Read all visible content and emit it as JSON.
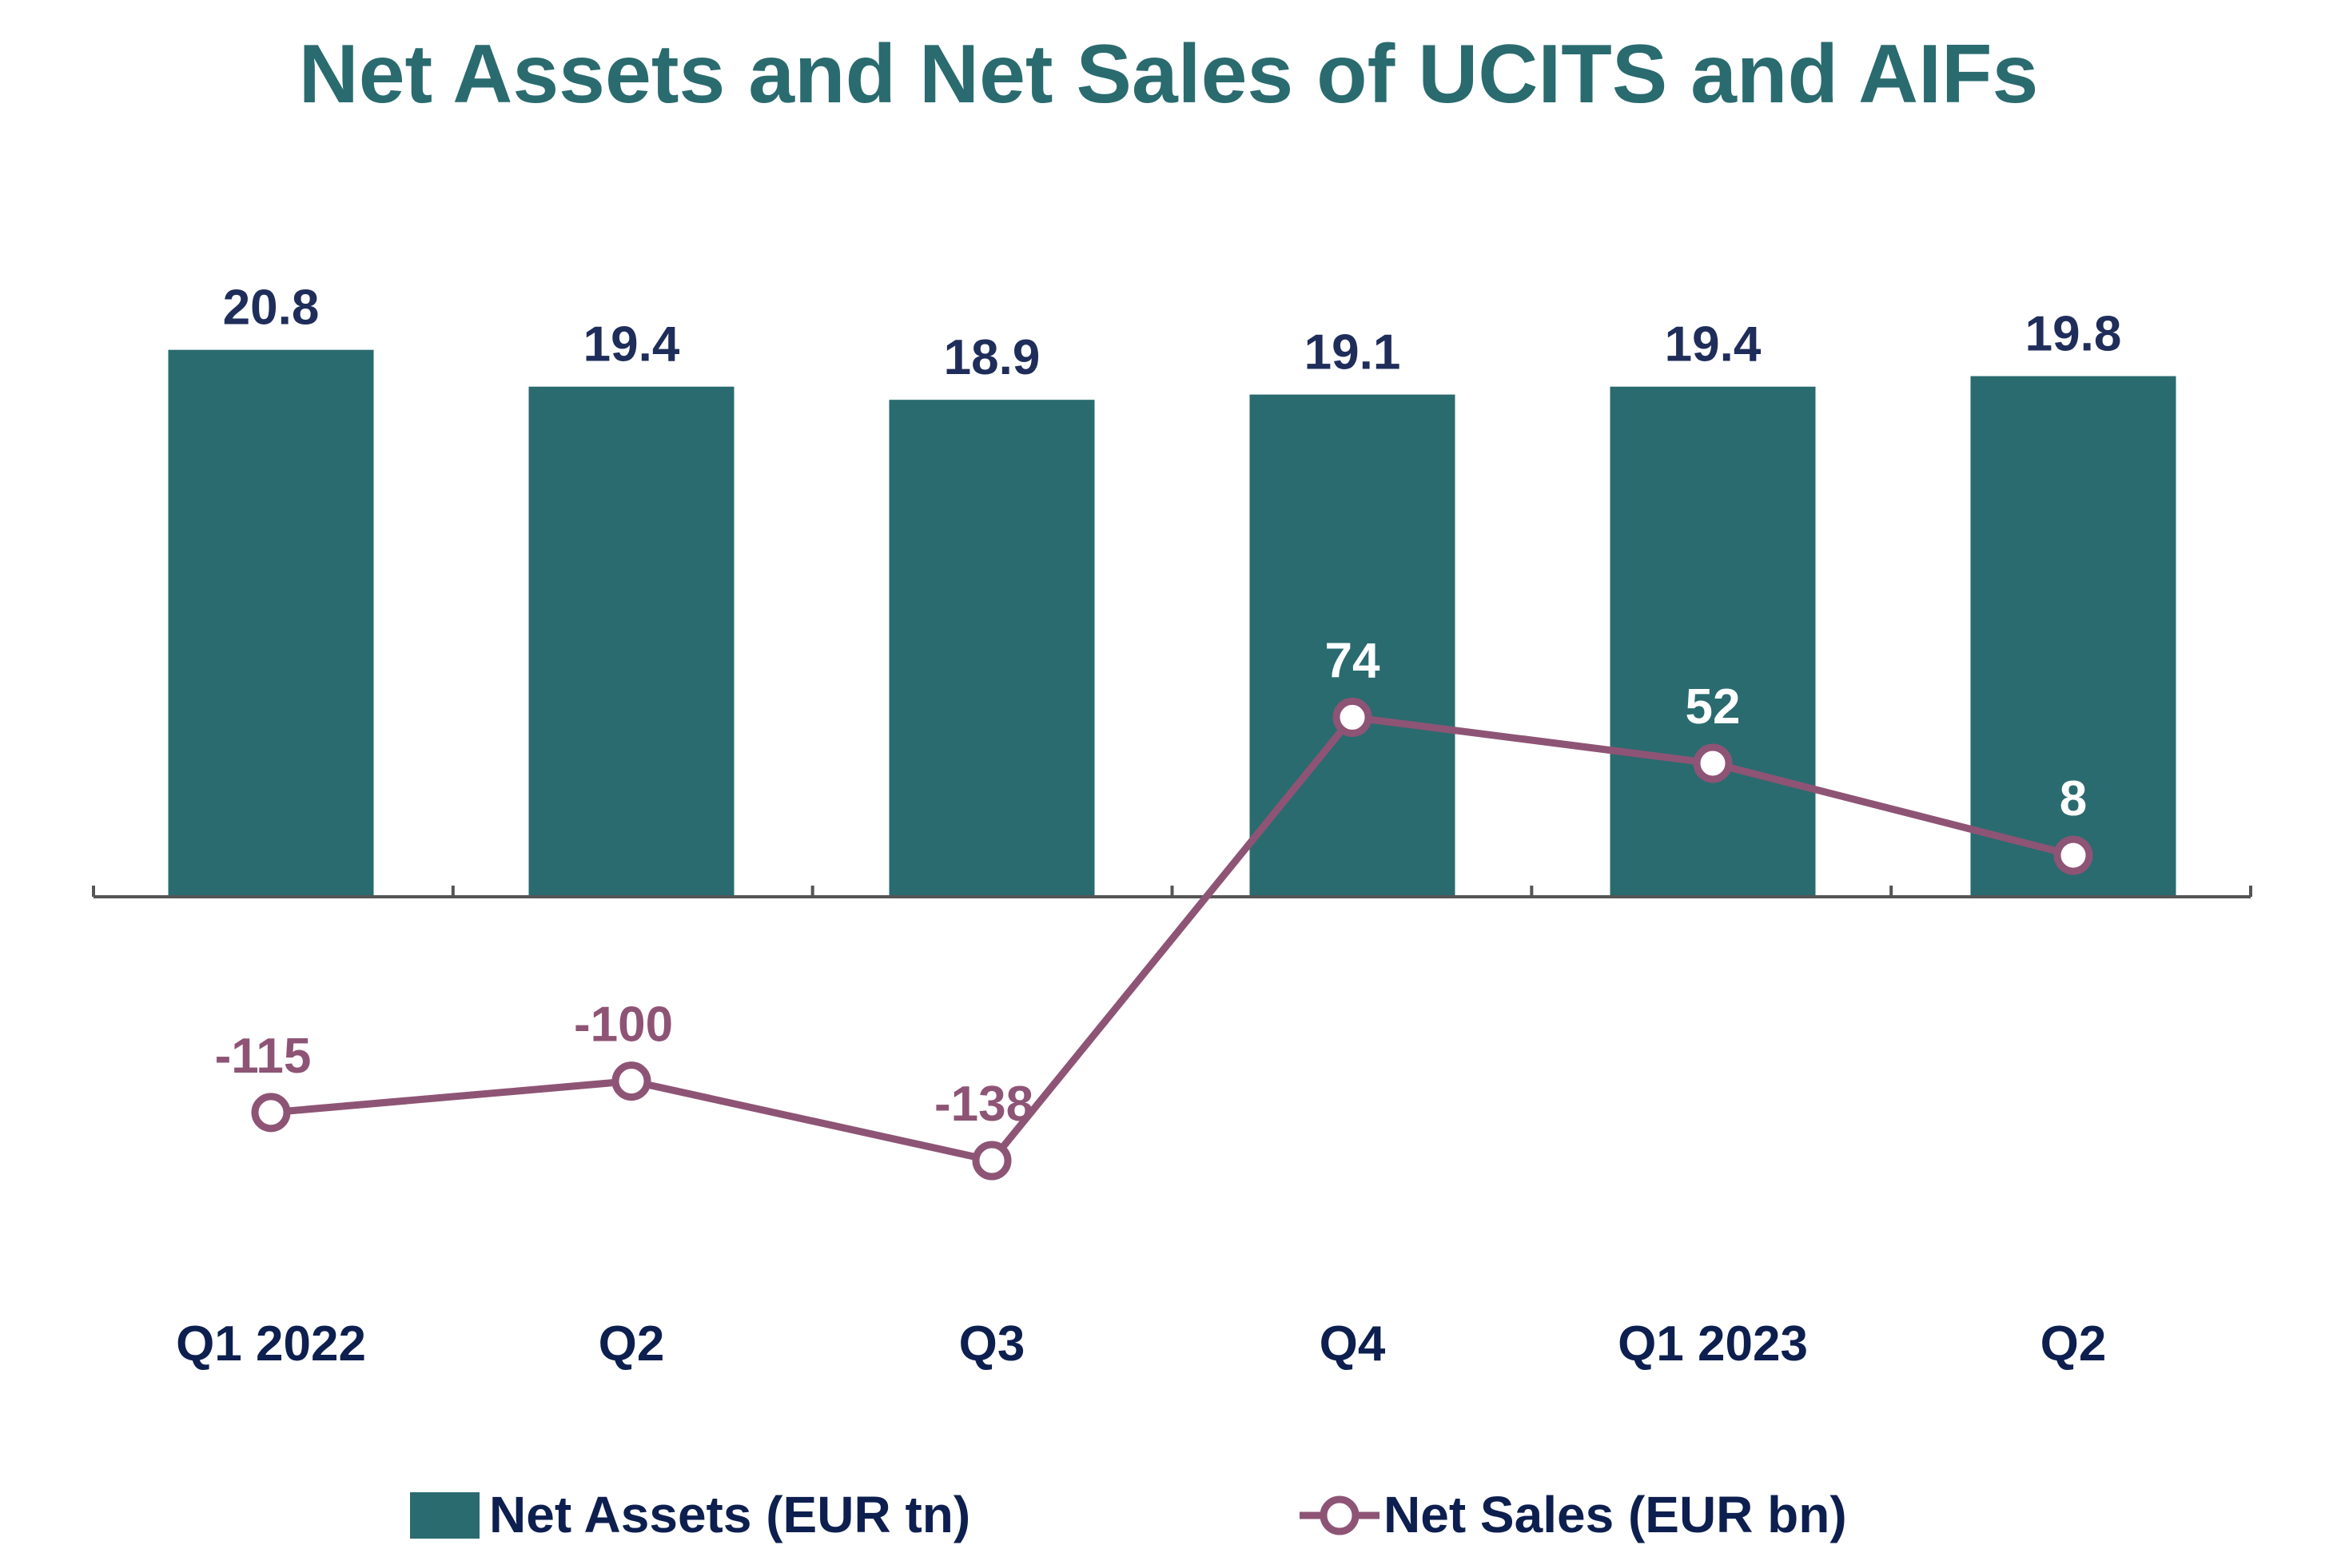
{
  "colors": {
    "bar": "#2a6b6f",
    "line": "#8e5475",
    "title": "#2a6b6f",
    "bar_label": "#1f2d5a",
    "category": "#0d1f4f",
    "legend_text": "#0d1f4f",
    "axis": "#555555"
  },
  "chart_data": {
    "type": "bar+line",
    "title": "Net Assets and Net Sales of UCITS and AIFs",
    "categories": [
      "Q1 2022",
      "Q2",
      "Q3",
      "Q4",
      "Q1 2023",
      "Q2"
    ],
    "series": [
      {
        "name": "Net Assets (EUR tn)",
        "type": "bar",
        "axis": "primary",
        "values": [
          20.8,
          19.4,
          18.9,
          19.1,
          19.4,
          19.8
        ],
        "labels": [
          "20.8",
          "19.4",
          "18.9",
          "19.1",
          "19.4",
          "19.8"
        ]
      },
      {
        "name": "Net Sales (EUR bn)",
        "type": "line",
        "axis": "secondary",
        "marker": "hollow-circle",
        "values": [
          -115,
          -100,
          -138,
          74,
          52,
          8
        ],
        "labels": [
          "-115",
          "-100",
          "-138",
          "74",
          "52",
          "8"
        ]
      }
    ],
    "legend_position": "bottom",
    "grid": false,
    "axes_visible": false
  }
}
